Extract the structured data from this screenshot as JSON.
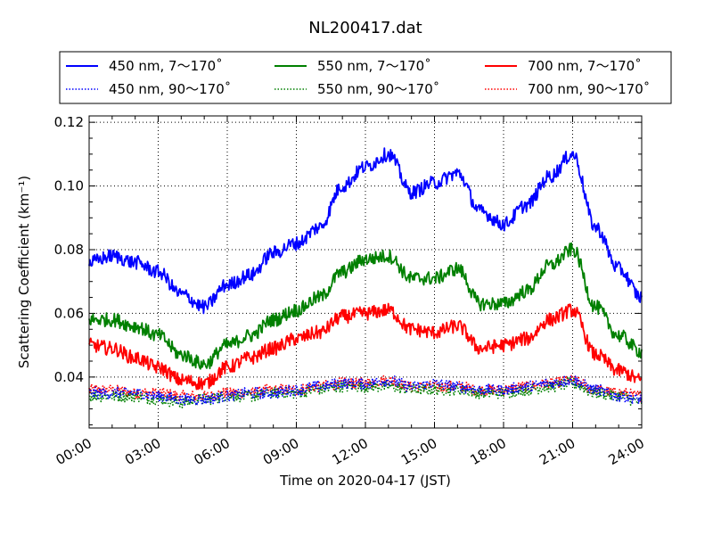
{
  "chart_data": {
    "type": "line",
    "title": "NL200417.dat",
    "xlabel": "Time on 2020-04-17 (JST)",
    "ylabel": "Scattering Coefficient (km⁻¹)",
    "xlim": [
      "00:00",
      "24:00"
    ],
    "ylim": [
      0.024,
      0.122
    ],
    "x_ticks": [
      "00:00",
      "03:00",
      "06:00",
      "09:00",
      "12:00",
      "15:00",
      "18:00",
      "21:00",
      "24:00"
    ],
    "y_ticks": [
      "0.04",
      "0.06",
      "0.08",
      "0.10",
      "0.12"
    ],
    "grid": true,
    "legend": {
      "placement": "top",
      "columns": 3
    },
    "x_hours": [
      0,
      1,
      2,
      3,
      4,
      5,
      6,
      7,
      8,
      9,
      10,
      11,
      12,
      13,
      14,
      15,
      16,
      17,
      18,
      19,
      20,
      21,
      22,
      23,
      24
    ],
    "series": [
      {
        "name": "450 nm, 7～170˚",
        "color": "#0000ff",
        "style": "solid",
        "values": [
          0.076,
          0.078,
          0.076,
          0.073,
          0.066,
          0.062,
          0.069,
          0.072,
          0.079,
          0.082,
          0.087,
          0.1,
          0.106,
          0.11,
          0.098,
          0.101,
          0.104,
          0.092,
          0.088,
          0.094,
          0.103,
          0.11,
          0.087,
          0.074,
          0.065
        ]
      },
      {
        "name": "450 nm, 90～170˚",
        "color": "#0000ff",
        "style": "dotted",
        "values": [
          0.035,
          0.035,
          0.035,
          0.034,
          0.033,
          0.033,
          0.034,
          0.035,
          0.035,
          0.036,
          0.037,
          0.038,
          0.038,
          0.039,
          0.037,
          0.038,
          0.037,
          0.036,
          0.036,
          0.037,
          0.038,
          0.039,
          0.036,
          0.034,
          0.033
        ]
      },
      {
        "name": "550 nm, 7～170˚",
        "color": "#008000",
        "style": "solid",
        "values": [
          0.058,
          0.058,
          0.056,
          0.053,
          0.047,
          0.044,
          0.05,
          0.053,
          0.058,
          0.061,
          0.065,
          0.073,
          0.077,
          0.078,
          0.071,
          0.071,
          0.074,
          0.063,
          0.063,
          0.067,
          0.075,
          0.08,
          0.062,
          0.053,
          0.048
        ]
      },
      {
        "name": "550 nm, 90～170˚",
        "color": "#008000",
        "style": "dotted",
        "values": [
          0.034,
          0.034,
          0.034,
          0.033,
          0.032,
          0.033,
          0.034,
          0.034,
          0.035,
          0.035,
          0.036,
          0.037,
          0.037,
          0.037,
          0.036,
          0.036,
          0.036,
          0.035,
          0.035,
          0.036,
          0.037,
          0.038,
          0.035,
          0.034,
          0.032
        ]
      },
      {
        "name": "700 nm, 7～170˚",
        "color": "#ff0000",
        "style": "solid",
        "values": [
          0.05,
          0.049,
          0.046,
          0.043,
          0.039,
          0.038,
          0.043,
          0.046,
          0.049,
          0.052,
          0.054,
          0.059,
          0.06,
          0.061,
          0.055,
          0.054,
          0.056,
          0.049,
          0.05,
          0.052,
          0.058,
          0.061,
          0.047,
          0.042,
          0.039
        ]
      },
      {
        "name": "700 nm, 90～170˚",
        "color": "#ff0000",
        "style": "dotted",
        "values": [
          0.036,
          0.036,
          0.035,
          0.035,
          0.034,
          0.034,
          0.035,
          0.035,
          0.036,
          0.036,
          0.037,
          0.038,
          0.038,
          0.039,
          0.037,
          0.037,
          0.037,
          0.036,
          0.036,
          0.037,
          0.038,
          0.039,
          0.036,
          0.035,
          0.034
        ]
      }
    ]
  }
}
